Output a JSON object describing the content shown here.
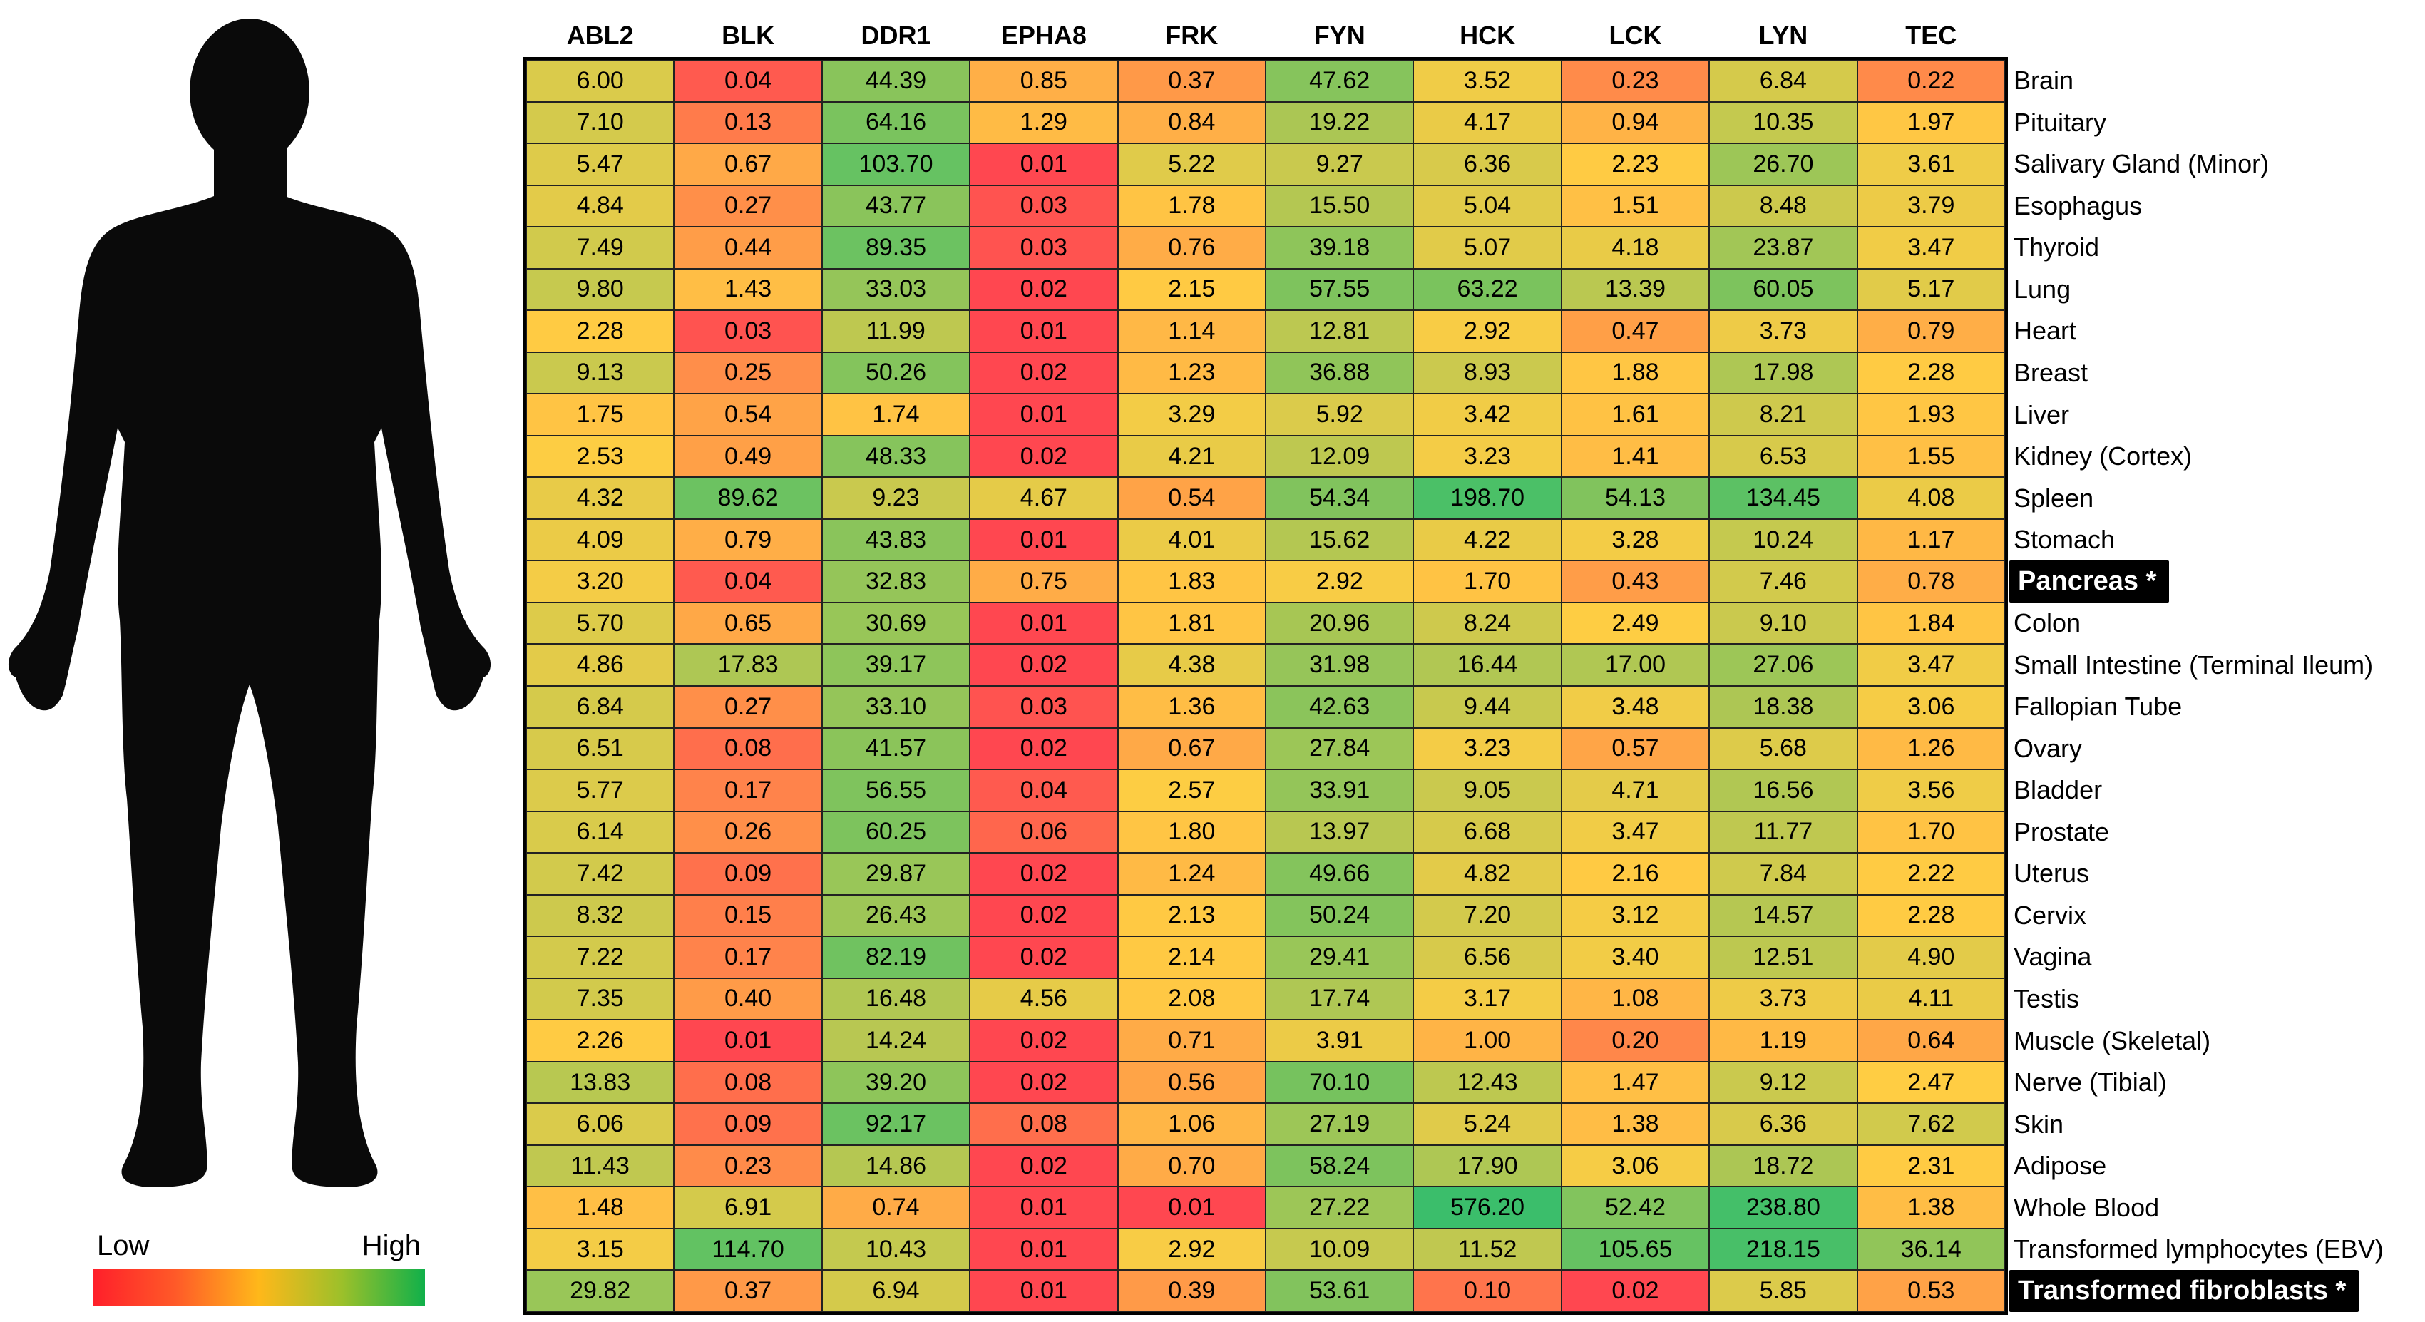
{
  "chart_data": {
    "type": "heatmap",
    "columns": [
      "ABL2",
      "BLK",
      "DDR1",
      "EPHA8",
      "FRK",
      "FYN",
      "HCK",
      "LCK",
      "LYN",
      "TEC"
    ],
    "rows": [
      {
        "label": "Brain",
        "highlight": false,
        "values": [
          "6.00",
          "0.04",
          "44.39",
          "0.85",
          "0.37",
          "47.62",
          "3.52",
          "0.23",
          "6.84",
          "0.22"
        ]
      },
      {
        "label": "Pituitary",
        "highlight": false,
        "values": [
          "7.10",
          "0.13",
          "64.16",
          "1.29",
          "0.84",
          "19.22",
          "4.17",
          "0.94",
          "10.35",
          "1.97"
        ]
      },
      {
        "label": "Salivary Gland (Minor)",
        "highlight": false,
        "values": [
          "5.47",
          "0.67",
          "103.70",
          "0.01",
          "5.22",
          "9.27",
          "6.36",
          "2.23",
          "26.70",
          "3.61"
        ]
      },
      {
        "label": "Esophagus",
        "highlight": false,
        "values": [
          "4.84",
          "0.27",
          "43.77",
          "0.03",
          "1.78",
          "15.50",
          "5.04",
          "1.51",
          "8.48",
          "3.79"
        ]
      },
      {
        "label": "Thyroid",
        "highlight": false,
        "values": [
          "7.49",
          "0.44",
          "89.35",
          "0.03",
          "0.76",
          "39.18",
          "5.07",
          "4.18",
          "23.87",
          "3.47"
        ]
      },
      {
        "label": "Lung",
        "highlight": false,
        "values": [
          "9.80",
          "1.43",
          "33.03",
          "0.02",
          "2.15",
          "57.55",
          "63.22",
          "13.39",
          "60.05",
          "5.17"
        ]
      },
      {
        "label": "Heart",
        "highlight": false,
        "values": [
          "2.28",
          "0.03",
          "11.99",
          "0.01",
          "1.14",
          "12.81",
          "2.92",
          "0.47",
          "3.73",
          "0.79"
        ]
      },
      {
        "label": "Breast",
        "highlight": false,
        "values": [
          "9.13",
          "0.25",
          "50.26",
          "0.02",
          "1.23",
          "36.88",
          "8.93",
          "1.88",
          "17.98",
          "2.28"
        ]
      },
      {
        "label": "Liver",
        "highlight": false,
        "values": [
          "1.75",
          "0.54",
          "1.74",
          "0.01",
          "3.29",
          "5.92",
          "3.42",
          "1.61",
          "8.21",
          "1.93"
        ]
      },
      {
        "label": "Kidney (Cortex)",
        "highlight": false,
        "values": [
          "2.53",
          "0.49",
          "48.33",
          "0.02",
          "4.21",
          "12.09",
          "3.23",
          "1.41",
          "6.53",
          "1.55"
        ]
      },
      {
        "label": "Spleen",
        "highlight": false,
        "values": [
          "4.32",
          "89.62",
          "9.23",
          "4.67",
          "0.54",
          "54.34",
          "198.70",
          "54.13",
          "134.45",
          "4.08"
        ]
      },
      {
        "label": "Stomach",
        "highlight": false,
        "values": [
          "4.09",
          "0.79",
          "43.83",
          "0.01",
          "4.01",
          "15.62",
          "4.22",
          "3.28",
          "10.24",
          "1.17"
        ]
      },
      {
        "label": "Pancreas *",
        "highlight": true,
        "values": [
          "3.20",
          "0.04",
          "32.83",
          "0.75",
          "1.83",
          "2.92",
          "1.70",
          "0.43",
          "7.46",
          "0.78"
        ]
      },
      {
        "label": "Colon",
        "highlight": false,
        "values": [
          "5.70",
          "0.65",
          "30.69",
          "0.01",
          "1.81",
          "20.96",
          "8.24",
          "2.49",
          "9.10",
          "1.84"
        ]
      },
      {
        "label": "Small Intestine (Terminal Ileum)",
        "highlight": false,
        "values": [
          "4.86",
          "17.83",
          "39.17",
          "0.02",
          "4.38",
          "31.98",
          "16.44",
          "17.00",
          "27.06",
          "3.47"
        ]
      },
      {
        "label": "Fallopian Tube",
        "highlight": false,
        "values": [
          "6.84",
          "0.27",
          "33.10",
          "0.03",
          "1.36",
          "42.63",
          "9.44",
          "3.48",
          "18.38",
          "3.06"
        ]
      },
      {
        "label": "Ovary",
        "highlight": false,
        "values": [
          "6.51",
          "0.08",
          "41.57",
          "0.02",
          "0.67",
          "27.84",
          "3.23",
          "0.57",
          "5.68",
          "1.26"
        ]
      },
      {
        "label": "Bladder",
        "highlight": false,
        "values": [
          "5.77",
          "0.17",
          "56.55",
          "0.04",
          "2.57",
          "33.91",
          "9.05",
          "4.71",
          "16.56",
          "3.56"
        ]
      },
      {
        "label": "Prostate",
        "highlight": false,
        "values": [
          "6.14",
          "0.26",
          "60.25",
          "0.06",
          "1.80",
          "13.97",
          "6.68",
          "3.47",
          "11.77",
          "1.70"
        ]
      },
      {
        "label": "Uterus",
        "highlight": false,
        "values": [
          "7.42",
          "0.09",
          "29.87",
          "0.02",
          "1.24",
          "49.66",
          "4.82",
          "2.16",
          "7.84",
          "2.22"
        ]
      },
      {
        "label": "Cervix",
        "highlight": false,
        "values": [
          "8.32",
          "0.15",
          "26.43",
          "0.02",
          "2.13",
          "50.24",
          "7.20",
          "3.12",
          "14.57",
          "2.28"
        ]
      },
      {
        "label": "Vagina",
        "highlight": false,
        "values": [
          "7.22",
          "0.17",
          "82.19",
          "0.02",
          "2.14",
          "29.41",
          "6.56",
          "3.40",
          "12.51",
          "4.90"
        ]
      },
      {
        "label": "Testis",
        "highlight": false,
        "values": [
          "7.35",
          "0.40",
          "16.48",
          "4.56",
          "2.08",
          "17.74",
          "3.17",
          "1.08",
          "3.73",
          "4.11"
        ]
      },
      {
        "label": "Muscle (Skeletal)",
        "highlight": false,
        "values": [
          "2.26",
          "0.01",
          "14.24",
          "0.02",
          "0.71",
          "3.91",
          "1.00",
          "0.20",
          "1.19",
          "0.64"
        ]
      },
      {
        "label": "Nerve (Tibial)",
        "highlight": false,
        "values": [
          "13.83",
          "0.08",
          "39.20",
          "0.02",
          "0.56",
          "70.10",
          "12.43",
          "1.47",
          "9.12",
          "2.47"
        ]
      },
      {
        "label": "Skin",
        "highlight": false,
        "values": [
          "6.06",
          "0.09",
          "92.17",
          "0.08",
          "1.06",
          "27.19",
          "5.24",
          "1.38",
          "6.36",
          "7.62"
        ]
      },
      {
        "label": "Adipose",
        "highlight": false,
        "values": [
          "11.43",
          "0.23",
          "14.86",
          "0.02",
          "0.70",
          "58.24",
          "17.90",
          "3.06",
          "18.72",
          "2.31"
        ]
      },
      {
        "label": "Whole Blood",
        "highlight": false,
        "values": [
          "1.48",
          "6.91",
          "0.74",
          "0.01",
          "0.01",
          "27.22",
          "576.20",
          "52.42",
          "238.80",
          "1.38"
        ]
      },
      {
        "label": "Transformed lymphocytes (EBV)",
        "highlight": false,
        "values": [
          "3.15",
          "114.70",
          "10.43",
          "0.01",
          "2.92",
          "10.09",
          "11.52",
          "105.65",
          "218.15",
          "36.14"
        ]
      },
      {
        "label": "Transformed fibroblasts *",
        "highlight": true,
        "values": [
          "29.82",
          "0.37",
          "6.94",
          "0.01",
          "0.39",
          "53.61",
          "0.10",
          "0.02",
          "5.85",
          "0.53"
        ]
      }
    ],
    "color_scale": {
      "low": "#ff1f2a",
      "mid": "#ffc21a",
      "high": "#10b04a"
    },
    "legend": {
      "low_label": "Low",
      "high_label": "High",
      "placement": "bottom-left"
    },
    "title": "",
    "xlabel": "",
    "ylabel": ""
  },
  "figure": {
    "silhouette_icon": "human-silhouette-icon",
    "silhouette_color": "#0a0a0a"
  }
}
